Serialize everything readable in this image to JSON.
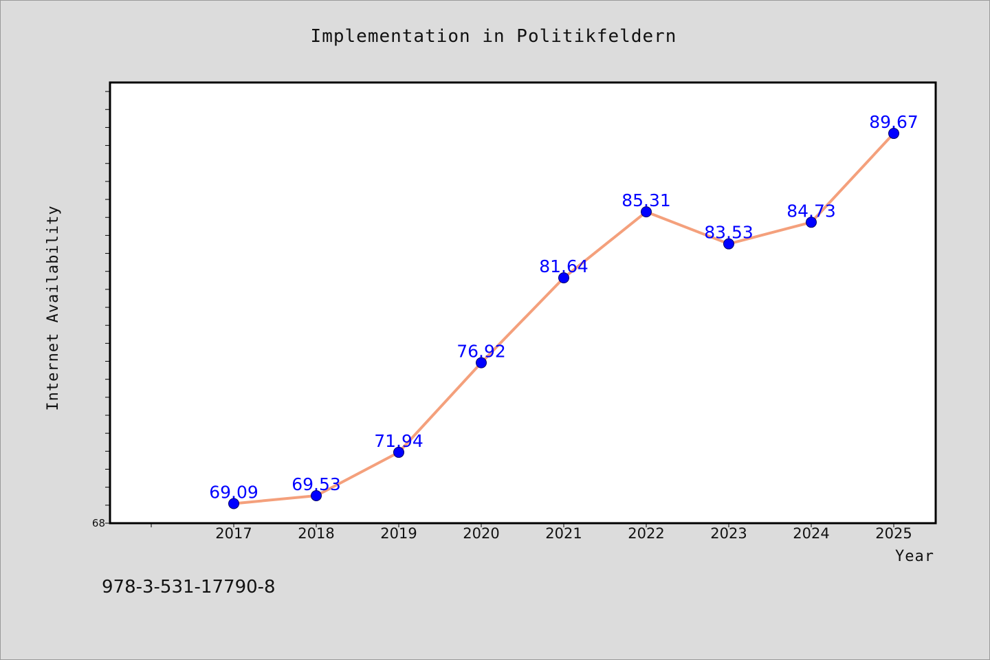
{
  "chart_data": {
    "type": "line",
    "title": "Implementation in Politikfeldern",
    "xlabel": "Year",
    "ylabel": "Internet Availability",
    "categories": [
      "2017",
      "2018",
      "2019",
      "2020",
      "2021",
      "2022",
      "2023",
      "2024",
      "2025"
    ],
    "series": [
      {
        "values": [
          69.09,
          69.53,
          71.94,
          76.92,
          81.64,
          85.31,
          83.53,
          84.73,
          89.67
        ],
        "data_labels": [
          "69.09",
          "69.53",
          "71.94",
          "76.92",
          "81.64",
          "85.31",
          "83.53",
          "84.73",
          "89.67"
        ],
        "line_color": "#f4a07c",
        "marker_color": "#0000ff"
      }
    ],
    "y_tick_label": "68",
    "ylim": [
      68,
      92.5
    ],
    "y_minor_tick_step": 1,
    "grid": false,
    "legend": "none"
  },
  "footer": {
    "isbn": "978-3-531-17790-8"
  },
  "colors": {
    "background": "#dcdcdc",
    "plot_area": "#ffffff",
    "frame": "#000000",
    "line": "#f4a07c",
    "marker": "#0000ff",
    "data_label": "#0000ff"
  }
}
